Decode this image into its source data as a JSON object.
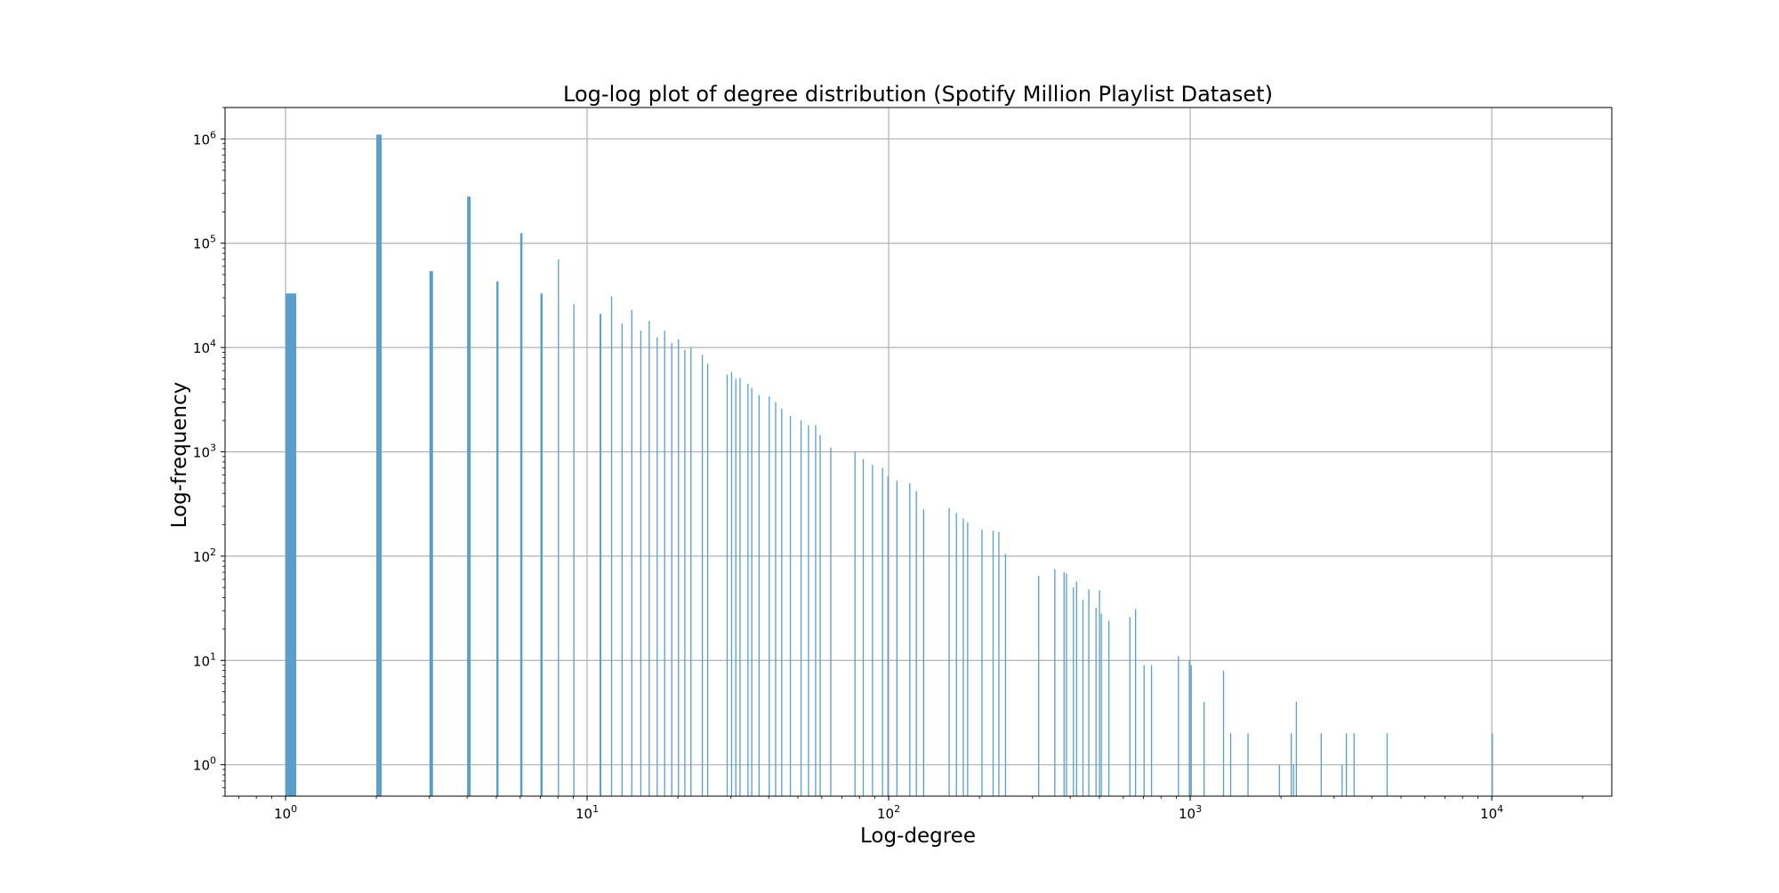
{
  "chart_data": {
    "type": "bar",
    "title": "Log-log plot of degree distribution (Spotify Million Playlist Dataset)",
    "xlabel": "Log-degree",
    "ylabel": "Log-frequency",
    "xscale": "log",
    "yscale": "log",
    "xlim": [
      0.63,
      25000
    ],
    "ylim": [
      0.5,
      2000000
    ],
    "grid": true,
    "bar_color": "#5b9ec9",
    "x_ticks": [
      {
        "value": 1,
        "base": "10",
        "exp": "0"
      },
      {
        "value": 10,
        "base": "10",
        "exp": "1"
      },
      {
        "value": 100,
        "base": "10",
        "exp": "2"
      },
      {
        "value": 1000,
        "base": "10",
        "exp": "3"
      },
      {
        "value": 10000,
        "base": "10",
        "exp": "4"
      }
    ],
    "y_ticks": [
      {
        "value": 1,
        "base": "10",
        "exp": "0"
      },
      {
        "value": 10,
        "base": "10",
        "exp": "1"
      },
      {
        "value": 100,
        "base": "10",
        "exp": "2"
      },
      {
        "value": 1000,
        "base": "10",
        "exp": "3"
      },
      {
        "value": 10000,
        "base": "10",
        "exp": "4"
      },
      {
        "value": 100000,
        "base": "10",
        "exp": "5"
      },
      {
        "value": 1000000,
        "base": "10",
        "exp": "6"
      }
    ],
    "degrees": [
      1,
      2,
      3,
      4,
      5,
      6,
      7,
      8,
      9,
      11,
      12,
      13,
      14,
      15,
      16,
      17,
      18,
      19,
      20,
      21,
      22,
      24,
      25,
      29,
      30,
      31,
      32,
      34,
      35,
      37,
      40,
      42,
      44,
      47,
      51,
      54,
      57,
      59,
      64,
      77,
      82,
      88,
      95,
      99,
      106,
      117,
      123,
      130,
      158,
      167,
      176,
      182,
      203,
      221,
      231,
      243,
      313,
      354,
      380,
      387,
      408,
      418,
      439,
      459,
      485,
      498,
      505,
      535,
      628,
      656,
      700,
      741,
      910,
      989,
      1003,
      1107,
      1284,
      1356,
      1548,
      1967,
      2154,
      2191,
      2239,
      2707,
      3175,
      3281,
      3480,
      4478,
      10000
    ],
    "frequencies": [
      33000,
      1100000,
      54000,
      280000,
      43000,
      125000,
      33000,
      70000,
      26000,
      21000,
      31000,
      17000,
      23000,
      14500,
      18000,
      12500,
      14500,
      11000,
      12000,
      9500,
      10000,
      8500,
      7000,
      5500,
      5800,
      5000,
      5100,
      4500,
      4100,
      3500,
      3400,
      3000,
      2600,
      2200,
      2000,
      1800,
      1800,
      1450,
      1100,
      1000,
      850,
      750,
      700,
      580,
      530,
      500,
      420,
      280,
      290,
      260,
      230,
      210,
      180,
      175,
      170,
      105,
      65,
      75,
      70,
      68,
      50,
      57,
      38,
      48,
      32,
      47,
      28,
      24,
      26,
      31,
      9,
      9,
      11,
      10,
      9,
      4,
      8,
      2,
      2,
      1,
      2,
      1,
      4,
      2,
      1,
      2,
      2,
      2,
      2
    ]
  }
}
